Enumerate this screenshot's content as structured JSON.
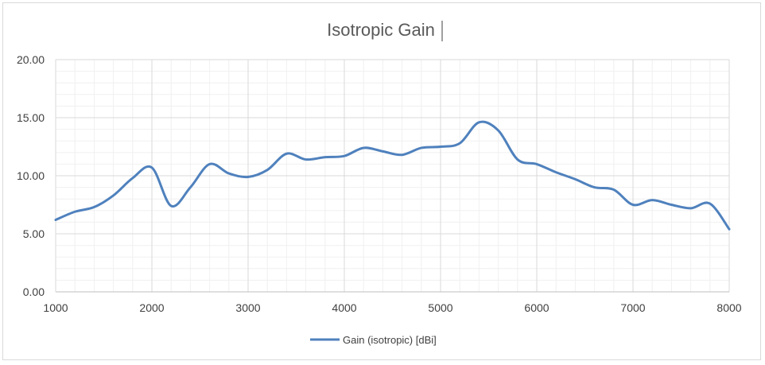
{
  "chart_data": {
    "type": "line",
    "title": "Isotropic Gain",
    "xlabel": "",
    "ylabel": "",
    "xlim": [
      1000,
      8000
    ],
    "ylim": [
      0,
      20
    ],
    "x_ticks": [
      "1000",
      "2000",
      "3000",
      "4000",
      "5000",
      "6000",
      "7000",
      "8000"
    ],
    "y_ticks": [
      "0.00",
      "5.00",
      "10.00",
      "15.00",
      "20.00"
    ],
    "grid": "major and minor",
    "legend": "bottom",
    "series": [
      {
        "name": "Gain (isotropic) [dBi]",
        "color": "#4f81bd",
        "x": [
          1000,
          1200,
          1400,
          1600,
          1800,
          2000,
          2200,
          2400,
          2600,
          2800,
          3000,
          3200,
          3400,
          3600,
          3800,
          4000,
          4200,
          4400,
          4600,
          4800,
          5000,
          5200,
          5400,
          5600,
          5800,
          6000,
          6200,
          6400,
          6600,
          6800,
          7000,
          7200,
          7400,
          7600,
          7800,
          8000
        ],
        "y": [
          6.2,
          6.9,
          7.3,
          8.3,
          9.8,
          10.7,
          7.4,
          9.0,
          11.0,
          10.2,
          9.9,
          10.5,
          11.9,
          11.4,
          11.6,
          11.7,
          12.4,
          12.1,
          11.8,
          12.4,
          12.5,
          12.8,
          14.6,
          13.9,
          11.4,
          11.0,
          10.3,
          9.7,
          9.0,
          8.8,
          7.5,
          7.9,
          7.5,
          7.2,
          7.6,
          5.4
        ]
      }
    ]
  }
}
